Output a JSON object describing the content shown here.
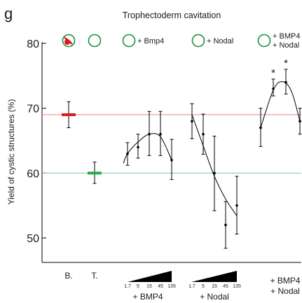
{
  "panel_letter": "g",
  "chart_data": {
    "type": "scatter",
    "title": "Trophectoderm cavitation",
    "ylabel": "Yield of cystic structures (%)",
    "xlabel": "",
    "ylim": [
      45,
      82
    ],
    "yticks": [
      50,
      60,
      70,
      80
    ],
    "grid": false,
    "reference_lines": [
      {
        "value": 69,
        "color": "#f08080"
      },
      {
        "value": 60,
        "color": "#6fd3a0"
      }
    ],
    "header_labels": [
      "+ Bmp4",
      "+ Nodal",
      "+ BMP4",
      "+ Nodal"
    ],
    "group_labels": [
      "B.",
      "T.",
      "+ BMP4",
      "+ Nodal",
      "+ BMP4",
      "+ Nodal"
    ],
    "dose_ticks": [
      "1.7",
      "5",
      "15",
      "45",
      "135"
    ],
    "asterisks": [
      "*",
      "*"
    ],
    "groups": [
      {
        "id": "B",
        "type": "bar",
        "value": 69,
        "err": [
          67,
          71
        ],
        "color": "#d9191c"
      },
      {
        "id": "T",
        "type": "bar",
        "value": 60,
        "err": [
          58.4,
          61.7
        ],
        "color": "#2aa84a"
      },
      {
        "id": "bmp4",
        "type": "dose",
        "doses": [
          1.7,
          5,
          15,
          45,
          135
        ],
        "values": [
          63,
          64,
          66,
          66,
          62
        ],
        "lower": [
          61.2,
          62.3,
          62.7,
          62.7,
          59
        ],
        "upper": [
          64.7,
          66,
          69.5,
          69.5,
          65.2
        ]
      },
      {
        "id": "nodal",
        "type": "dose",
        "doses": [
          1.7,
          5,
          15,
          45,
          135
        ],
        "values": [
          68,
          66,
          60,
          52,
          55
        ],
        "lower": [
          65.3,
          62.9,
          54.2,
          48.4,
          50.6
        ],
        "upper": [
          70.7,
          69.1,
          65.7,
          55.6,
          59.5
        ]
      },
      {
        "id": "combo",
        "type": "points",
        "values": [
          67,
          73,
          74,
          68
        ],
        "lower": [
          64.1,
          71.9,
          72.2,
          66
        ],
        "upper": [
          70,
          74.5,
          76,
          70
        ]
      }
    ]
  }
}
